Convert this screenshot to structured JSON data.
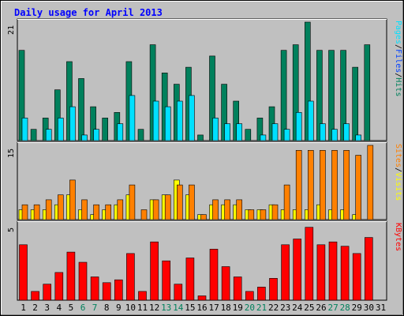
{
  "title": "Daily usage for April 2013",
  "colors": {
    "background": "#c0c0c0",
    "plot": "#c0c0c0",
    "title": "#0000ff",
    "hits": "#00805c",
    "files": "#0040ff",
    "pages": "#00e0ff",
    "visits": "#ffff00",
    "sites": "#ff8000",
    "kbytes": "#ff0000",
    "weekend": "#00805c",
    "axis": "#000000"
  },
  "chart_data": [
    {
      "type": "bar",
      "panel": "hits_files_pages",
      "x": [
        1,
        2,
        3,
        4,
        5,
        6,
        7,
        8,
        9,
        10,
        11,
        12,
        13,
        14,
        15,
        16,
        17,
        18,
        19,
        20,
        21,
        22,
        23,
        24,
        25,
        26,
        27,
        28,
        29,
        30,
        31
      ],
      "ymax_label": "21",
      "ylim": [
        0,
        21
      ],
      "legend": [
        "Pages",
        "Files",
        "Hits"
      ],
      "series": [
        {
          "name": "Hits",
          "values": [
            16,
            2,
            4,
            9,
            14,
            11,
            6,
            4,
            5,
            14,
            2,
            17,
            12,
            10,
            13,
            1,
            15,
            10,
            7,
            2,
            4,
            6,
            16,
            17,
            21,
            16,
            16,
            16,
            13,
            17,
            0
          ]
        },
        {
          "name": "Files",
          "values": [
            4,
            0,
            3,
            5,
            6,
            1,
            2,
            0,
            3,
            8,
            0,
            7,
            6,
            7,
            8,
            0,
            4,
            3,
            3,
            0,
            3,
            3,
            4,
            5,
            7,
            3,
            3,
            3,
            1,
            0,
            0
          ]
        },
        {
          "name": "Pages",
          "values": [
            4,
            0,
            2,
            4,
            6,
            1,
            2,
            0,
            3,
            8,
            0,
            7,
            6,
            7,
            8,
            0,
            4,
            3,
            3,
            0,
            1,
            3,
            2,
            5,
            7,
            3,
            2,
            3,
            1,
            0,
            0
          ]
        }
      ]
    },
    {
      "type": "bar",
      "panel": "visits_sites",
      "x": [
        1,
        2,
        3,
        4,
        5,
        6,
        7,
        8,
        9,
        10,
        11,
        12,
        13,
        14,
        15,
        16,
        17,
        18,
        19,
        20,
        21,
        22,
        23,
        24,
        25,
        26,
        27,
        28,
        29,
        30,
        31
      ],
      "ymax_label": "15",
      "ylim": [
        0,
        15
      ],
      "legend": [
        "Sites",
        "Visits"
      ],
      "series": [
        {
          "name": "Visits",
          "values": [
            2,
            2,
            2,
            3,
            5,
            2,
            1,
            2,
            3,
            5,
            0,
            4,
            5,
            8,
            5,
            1,
            3,
            3,
            3,
            2,
            2,
            3,
            2,
            2,
            2,
            3,
            2,
            2,
            1,
            0,
            0
          ]
        },
        {
          "name": "Sites",
          "values": [
            3,
            3,
            4,
            5,
            8,
            4,
            3,
            3,
            4,
            7,
            2,
            4,
            5,
            7,
            7,
            1,
            4,
            4,
            4,
            2,
            2,
            3,
            7,
            14,
            14,
            14,
            14,
            14,
            13,
            15,
            0
          ]
        }
      ]
    },
    {
      "type": "bar",
      "panel": "kbytes",
      "x": [
        1,
        2,
        3,
        4,
        5,
        6,
        7,
        8,
        9,
        10,
        11,
        12,
        13,
        14,
        15,
        16,
        17,
        18,
        19,
        20,
        21,
        22,
        23,
        24,
        25,
        26,
        27,
        28,
        29,
        30,
        31
      ],
      "ymax_label": "5",
      "ylim": [
        0,
        5.2
      ],
      "legend": [
        "KBytes"
      ],
      "series": [
        {
          "name": "KBytes",
          "values": [
            3.8,
            0.6,
            1.1,
            1.9,
            3.3,
            2.6,
            1.6,
            1.2,
            1.4,
            3.2,
            0.6,
            4.0,
            2.7,
            1.1,
            2.9,
            0.3,
            3.5,
            2.3,
            1.6,
            0.6,
            0.9,
            1.5,
            3.8,
            4.2,
            5.0,
            3.8,
            4.0,
            3.7,
            3.2,
            4.3,
            0
          ]
        }
      ]
    }
  ],
  "x_labels": [
    "1",
    "2",
    "3",
    "4",
    "5",
    "6",
    "7",
    "8",
    "9",
    "10",
    "11",
    "12",
    "13",
    "14",
    "15",
    "16",
    "17",
    "18",
    "19",
    "20",
    "21",
    "22",
    "23",
    "24",
    "25",
    "26",
    "27",
    "28",
    "29",
    "30",
    "31"
  ],
  "weekend_days": [
    6,
    7,
    13,
    14,
    20,
    21,
    27,
    28
  ],
  "legends": {
    "top": [
      {
        "text": "Pages",
        "color": "#00e0ff"
      },
      {
        "text": "/",
        "color": "#000000"
      },
      {
        "text": "Files",
        "color": "#0040ff"
      },
      {
        "text": "/",
        "color": "#000000"
      },
      {
        "text": "Hits",
        "color": "#00805c"
      }
    ],
    "middle": [
      {
        "text": "Sites",
        "color": "#ff8000"
      },
      {
        "text": "/",
        "color": "#000000"
      },
      {
        "text": "Visits",
        "color": "#ffff00"
      }
    ],
    "bottom": [
      {
        "text": "KBytes",
        "color": "#ff0000"
      }
    ]
  }
}
